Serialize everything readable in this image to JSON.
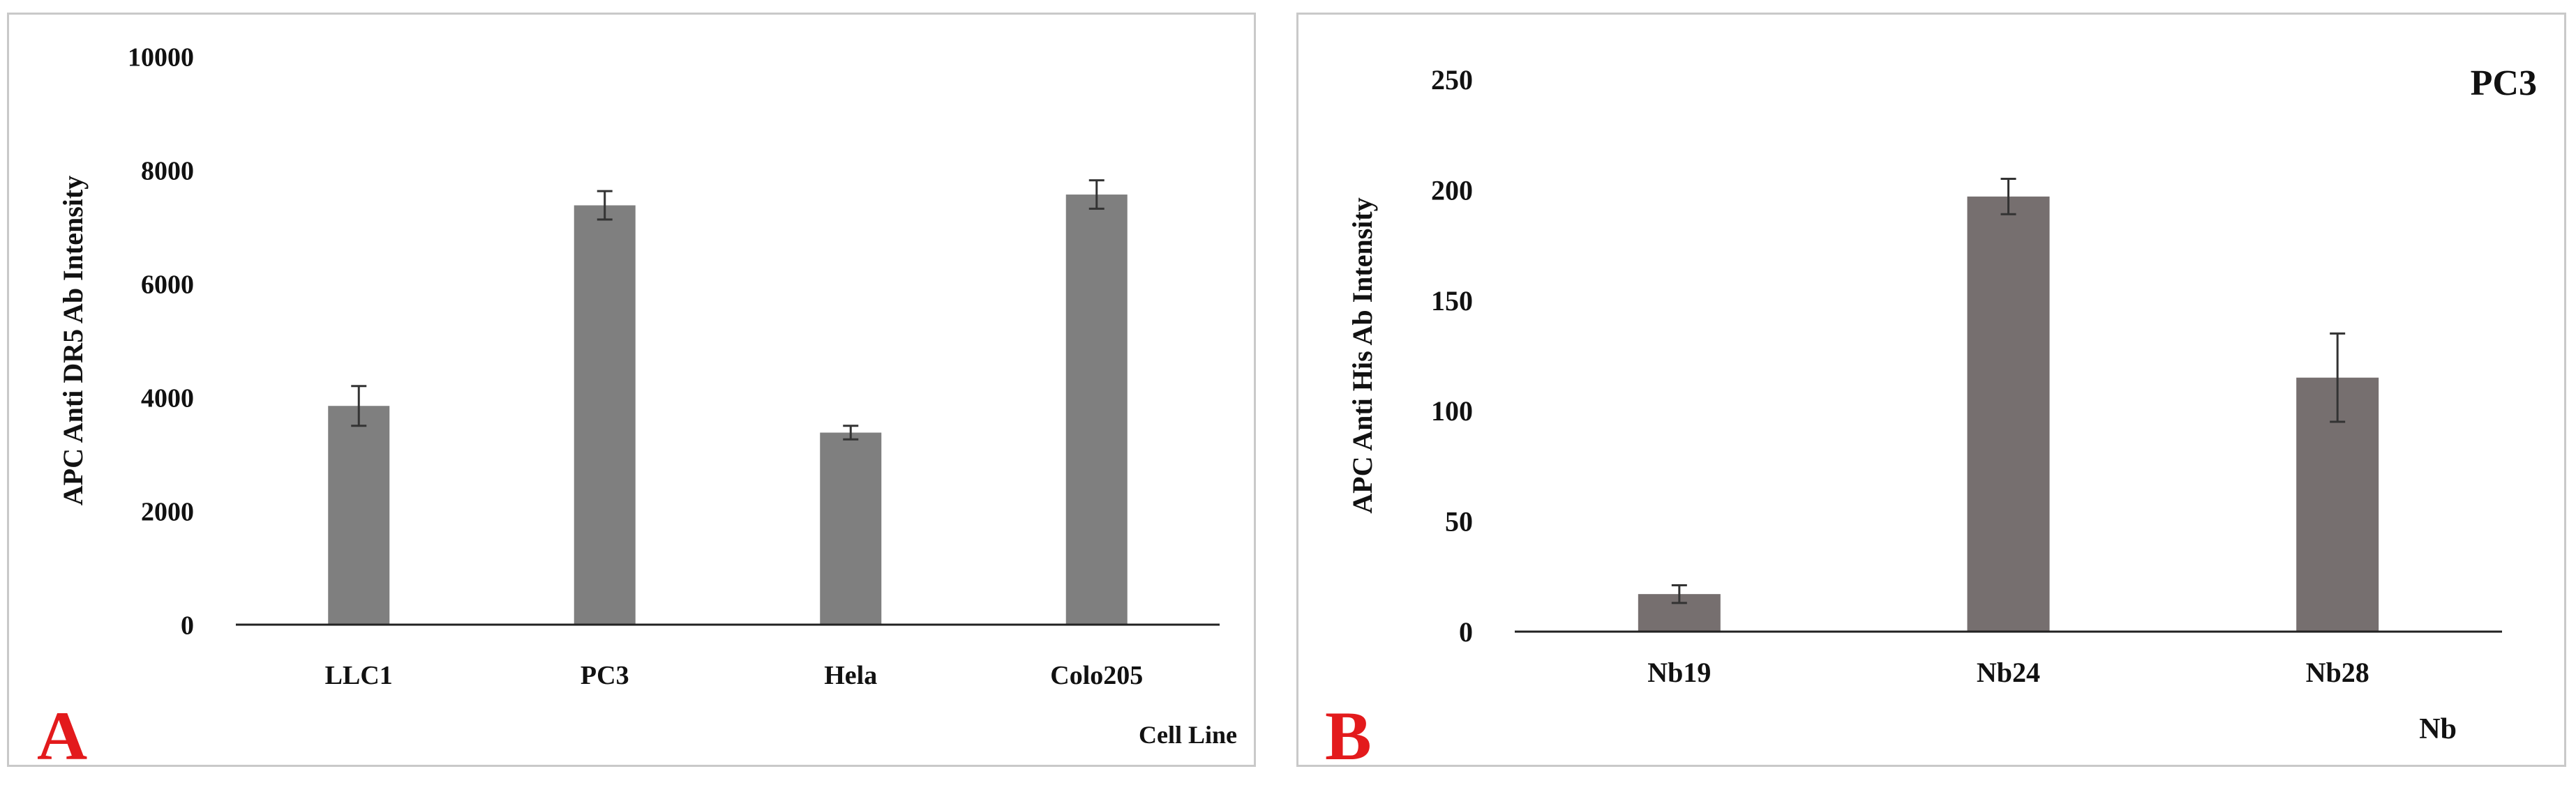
{
  "chart_data": [
    {
      "type": "bar",
      "panel_label": "A",
      "title": "",
      "xlabel": "Cell Line",
      "ylabel": "APC Anti DR5 Ab Intensity",
      "categories": [
        "LLC1",
        "PC3",
        "Hela",
        "Colo205"
      ],
      "values": [
        3850,
        7380,
        3380,
        7570
      ],
      "errors": [
        350,
        250,
        120,
        250
      ],
      "ylim": [
        0,
        10000
      ],
      "yticks": [
        0,
        2000,
        4000,
        6000,
        8000,
        10000
      ],
      "grid": false,
      "bar_color": "#7f7f7f"
    },
    {
      "type": "bar",
      "panel_label": "B",
      "title": "PC3",
      "xlabel": "Nb",
      "ylabel": "APC Anti His Ab Intensity",
      "categories": [
        "Nb19",
        "Nb24",
        "Nb28"
      ],
      "values": [
        17,
        197,
        115
      ],
      "errors": [
        4,
        8,
        20
      ],
      "ylim": [
        0,
        250
      ],
      "yticks": [
        0,
        50,
        100,
        150,
        200,
        250
      ],
      "grid": false,
      "bar_color": "#766f6f"
    }
  ],
  "colors": {
    "panel_letter": "#e31a1c",
    "axis": "#222222",
    "border": "#c9c9c9"
  }
}
